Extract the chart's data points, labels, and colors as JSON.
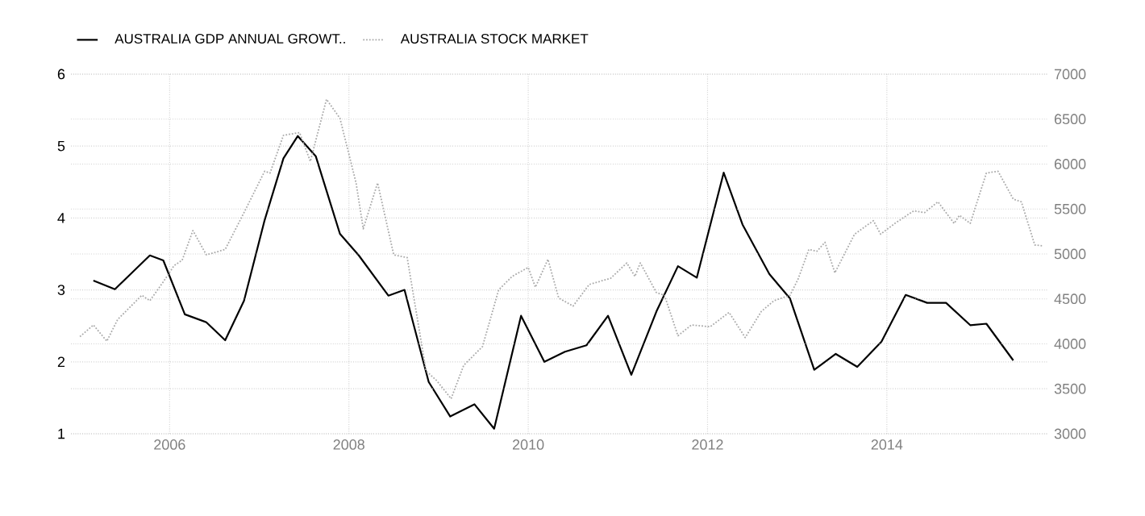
{
  "chart_data": {
    "type": "line",
    "x": [
      2005.15,
      2005.39,
      2005.78,
      2005.93,
      2006.17,
      2006.41,
      2006.62,
      2006.83,
      2007.06,
      2007.27,
      2007.43,
      2007.63,
      2007.9,
      2008.11,
      2008.44,
      2008.62,
      2008.89,
      2009.13,
      2009.4,
      2009.62,
      2009.92,
      2010.18,
      2010.41,
      2010.65,
      2010.89,
      2011.15,
      2011.43,
      2011.67,
      2011.88,
      2012.18,
      2012.39,
      2012.69,
      2012.92,
      2013.19,
      2013.43,
      2013.67,
      2013.94,
      2014.21,
      2014.45,
      2014.66,
      2014.93,
      2015.11,
      2015.41
    ],
    "series": [
      {
        "name": "AUSTRALIA GDP ANNUAL GROWT..",
        "color": "#000000",
        "line_style": "solid",
        "values": [
          3.13,
          3.01,
          3.48,
          3.41,
          2.66,
          2.55,
          2.3,
          2.85,
          3.97,
          4.83,
          5.14,
          4.86,
          3.78,
          3.48,
          2.92,
          3.0,
          1.72,
          1.24,
          1.41,
          1.07,
          2.64,
          2.0,
          2.14,
          2.23,
          2.64,
          1.82,
          2.7,
          3.33,
          3.17,
          4.63,
          3.91,
          3.22,
          2.88,
          1.89,
          2.11,
          1.93,
          2.28,
          2.93,
          2.82,
          2.82,
          2.51,
          2.53,
          2.02
        ]
      },
      {
        "name": "AUSTRALIA STOCK MARKET",
        "color": "#aaaaaa",
        "line_style": "dotted",
        "axis": "y2",
        "x": [
          2005.0,
          2005.15,
          2005.3,
          2005.42,
          2005.69,
          2005.78,
          2005.93,
          2006.05,
          2006.14,
          2006.26,
          2006.41,
          2006.62,
          2006.83,
          2007.06,
          2007.12,
          2007.27,
          2007.45,
          2007.57,
          2007.75,
          2007.9,
          2008.08,
          2008.16,
          2008.32,
          2008.5,
          2008.65,
          2008.86,
          2008.98,
          2009.14,
          2009.28,
          2009.49,
          2009.67,
          2009.82,
          2010.0,
          2010.08,
          2010.22,
          2010.34,
          2010.5,
          2010.68,
          2010.92,
          2011.1,
          2011.19,
          2011.25,
          2011.43,
          2011.52,
          2011.67,
          2011.82,
          2012.03,
          2012.24,
          2012.42,
          2012.6,
          2012.74,
          2012.92,
          2013.01,
          2013.13,
          2013.22,
          2013.31,
          2013.42,
          2013.64,
          2013.85,
          2013.93,
          2014.09,
          2014.3,
          2014.42,
          2014.57,
          2014.75,
          2014.81,
          2014.93,
          2015.11,
          2015.24,
          2015.41,
          2015.5,
          2015.65,
          2015.74
        ],
        "values": [
          4080,
          4210,
          4030,
          4270,
          4540,
          4480,
          4690,
          4870,
          4930,
          5260,
          4990,
          5050,
          5460,
          5920,
          5900,
          6320,
          6350,
          6030,
          6720,
          6510,
          5790,
          5280,
          5790,
          4990,
          4960,
          3700,
          3590,
          3390,
          3760,
          3970,
          4600,
          4750,
          4850,
          4630,
          4940,
          4510,
          4420,
          4660,
          4730,
          4900,
          4750,
          4900,
          4570,
          4540,
          4090,
          4210,
          4190,
          4350,
          4070,
          4360,
          4480,
          4540,
          4720,
          5050,
          5030,
          5130,
          4790,
          5220,
          5370,
          5220,
          5340,
          5480,
          5460,
          5580,
          5340,
          5430,
          5340,
          5900,
          5920,
          5610,
          5580,
          5100,
          5090
        ]
      }
    ],
    "xlim": [
      2004.9,
      2015.8
    ],
    "xticks": [
      2006,
      2008,
      2010,
      2012,
      2014
    ],
    "ylim": [
      1,
      6
    ],
    "yticks": [
      1,
      2,
      3,
      4,
      5,
      6
    ],
    "y2lim": [
      3000,
      7000
    ],
    "y2ticks": [
      3000,
      3500,
      4000,
      4500,
      5000,
      5500,
      6000,
      6500,
      7000
    ],
    "grid": true,
    "legend": "top left"
  }
}
